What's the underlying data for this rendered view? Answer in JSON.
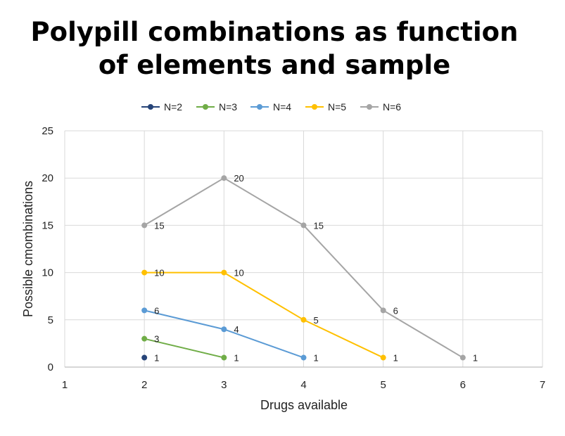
{
  "chart_data": {
    "type": "line",
    "title_lines": [
      "Polypill combinations as function",
      "of elements and sample"
    ],
    "xlabel": "Drugs available",
    "ylabel": "Possible cmombinations",
    "xlim": [
      1,
      7
    ],
    "ylim": [
      0,
      25
    ],
    "x_ticks": [
      1,
      2,
      3,
      4,
      5,
      6,
      7
    ],
    "y_ticks": [
      0,
      5,
      10,
      15,
      20,
      25
    ],
    "grid": true,
    "legend_position": "top",
    "series": [
      {
        "name": "N=2",
        "color": "#264478",
        "x": [
          2
        ],
        "y": [
          1
        ]
      },
      {
        "name": "N=3",
        "color": "#70AD47",
        "x": [
          2,
          3
        ],
        "y": [
          3,
          1
        ]
      },
      {
        "name": "N=4",
        "color": "#5B9BD5",
        "x": [
          2,
          3,
          4
        ],
        "y": [
          6,
          4,
          1
        ]
      },
      {
        "name": "N=5",
        "color": "#FFC000",
        "x": [
          2,
          3,
          4,
          5
        ],
        "y": [
          10,
          10,
          5,
          1
        ]
      },
      {
        "name": "N=6",
        "color": "#A5A5A5",
        "x": [
          2,
          3,
          4,
          5,
          6
        ],
        "y": [
          15,
          20,
          15,
          6,
          1
        ]
      }
    ]
  }
}
